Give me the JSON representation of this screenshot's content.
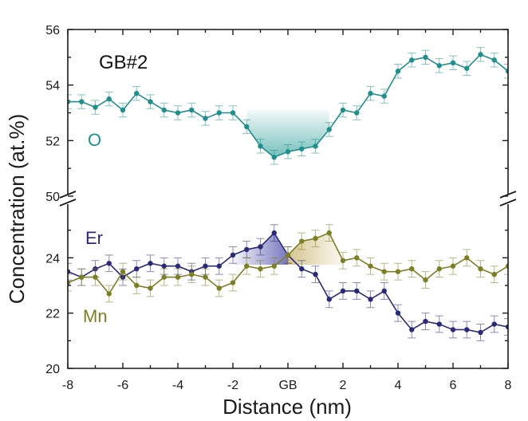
{
  "chart_data": {
    "type": "line",
    "title": "GB#2",
    "xlabel": "Distance (nm)",
    "ylabel": "Concentration (at.%)",
    "xlim": [
      -8,
      8
    ],
    "x_ticks": [
      {
        "value": -8,
        "label": "-8"
      },
      {
        "value": -6,
        "label": "-6"
      },
      {
        "value": -4,
        "label": "-4"
      },
      {
        "value": -2,
        "label": "-2"
      },
      {
        "value": 0,
        "label": "GB"
      },
      {
        "value": 2,
        "label": "2"
      },
      {
        "value": 4,
        "label": "4"
      },
      {
        "value": 6,
        "label": "6"
      },
      {
        "value": 8,
        "label": "8"
      }
    ],
    "upper_panel": {
      "ylim": [
        50,
        56
      ],
      "y_ticks": [
        {
          "value": 50,
          "label": "50"
        },
        {
          "value": 52,
          "label": "52"
        },
        {
          "value": 54,
          "label": "54"
        },
        {
          "value": 56,
          "label": "56"
        }
      ]
    },
    "lower_panel": {
      "ylim": [
        20,
        26
      ],
      "y_ticks": [
        {
          "value": 20,
          "label": "20"
        },
        {
          "value": 22,
          "label": "22"
        },
        {
          "value": 24,
          "label": "24"
        }
      ]
    },
    "x": [
      -8.0,
      -7.5,
      -7.0,
      -6.5,
      -6.0,
      -5.5,
      -5.0,
      -4.5,
      -4.0,
      -3.5,
      -3.0,
      -2.5,
      -2.0,
      -1.5,
      -1.0,
      -0.5,
      0.0,
      0.5,
      1.0,
      1.5,
      2.0,
      2.5,
      3.0,
      3.5,
      4.0,
      4.5,
      5.0,
      5.5,
      6.0,
      6.5,
      7.0,
      7.5,
      8.0
    ],
    "series": [
      {
        "name": "O",
        "label": "O",
        "panel": "upper",
        "color": "#1f8f8c",
        "shade_color": "#2a9c98",
        "error": 0.25,
        "values": [
          53.4,
          53.4,
          53.2,
          53.5,
          53.1,
          53.7,
          53.4,
          53.1,
          53.0,
          53.1,
          52.8,
          53.0,
          53.0,
          52.5,
          51.8,
          51.4,
          51.6,
          51.7,
          51.8,
          52.4,
          53.1,
          53.0,
          53.7,
          53.6,
          54.5,
          54.9,
          55.0,
          54.7,
          54.8,
          54.6,
          55.1,
          54.9,
          54.5
        ],
        "shade_range": [
          -1.5,
          1.5
        ]
      },
      {
        "name": "Er",
        "label": "Er",
        "panel": "lower",
        "color": "#2b2a78",
        "shade_color": "#4a4aa8",
        "error": 0.3,
        "values": [
          23.5,
          23.3,
          23.6,
          23.8,
          23.3,
          23.6,
          23.8,
          23.7,
          23.7,
          23.5,
          23.7,
          23.7,
          24.1,
          24.3,
          24.4,
          24.9,
          24.1,
          23.6,
          23.4,
          22.5,
          22.8,
          22.8,
          22.5,
          22.8,
          22.0,
          21.4,
          21.7,
          21.6,
          21.4,
          21.4,
          21.3,
          21.6,
          21.5
        ],
        "shade_range": [
          -2.0,
          0.0
        ]
      },
      {
        "name": "Mn",
        "label": "Mn",
        "panel": "lower",
        "color": "#7d7f25",
        "shade_color": "#c9b26a",
        "error": 0.3,
        "values": [
          23.1,
          23.3,
          23.3,
          22.7,
          23.5,
          23.0,
          22.9,
          23.3,
          23.3,
          23.4,
          23.3,
          22.9,
          23.1,
          23.7,
          23.6,
          23.7,
          24.1,
          24.6,
          24.7,
          24.9,
          23.9,
          24.0,
          23.7,
          23.5,
          23.5,
          23.6,
          23.2,
          23.6,
          23.7,
          24.0,
          23.6,
          23.4,
          23.7
        ],
        "shade_range": [
          0.0,
          2.0
        ]
      }
    ]
  }
}
